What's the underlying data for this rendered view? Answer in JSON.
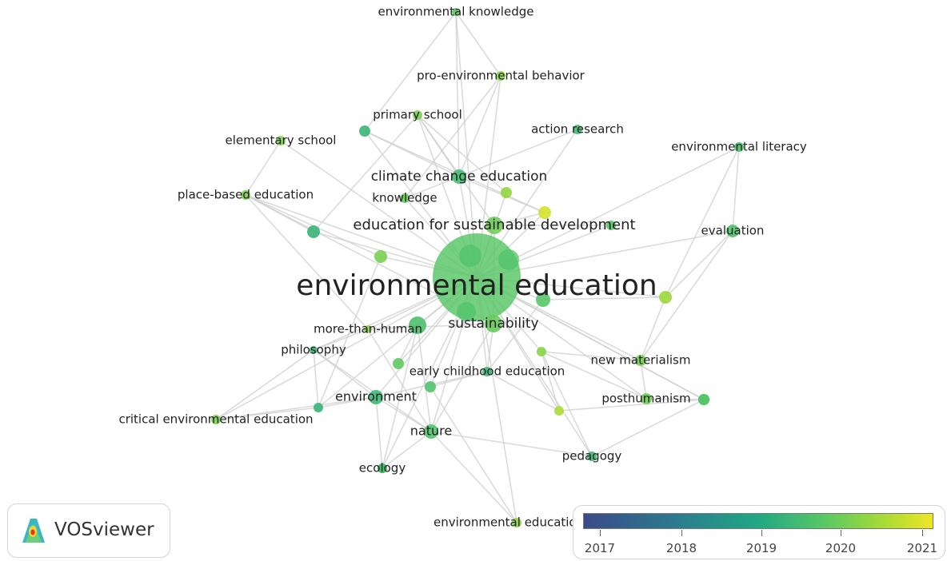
{
  "network": {
    "colors": {
      "edge": "#cfcfcf",
      "label": "#222222"
    },
    "nodes": [
      {
        "id": "environmental-education",
        "label": "environmental education",
        "year": 2019.6
      },
      {
        "id": "sustainability",
        "label": "sustainability",
        "year": 2019.8
      },
      {
        "id": "education-for-sustainable-development",
        "label": "education for sustainable development",
        "year": 2019.9
      },
      {
        "id": "climate-change-education",
        "label": "climate change education",
        "year": 2019.3
      },
      {
        "id": "environmental-knowledge",
        "label": "environmental knowledge",
        "year": 2019.7
      },
      {
        "id": "pro-environmental-behavior",
        "label": "pro-environmental behavior",
        "year": 2020.2
      },
      {
        "id": "primary-school",
        "label": "primary school",
        "year": 2020.0
      },
      {
        "id": "action-research",
        "label": "action research",
        "year": 2019.3
      },
      {
        "id": "elementary-school",
        "label": "elementary school",
        "year": 2020.2
      },
      {
        "id": "environmental-literacy",
        "label": "environmental literacy",
        "year": 2019.4
      },
      {
        "id": "place-based-education",
        "label": "place-based education",
        "year": 2020.0
      },
      {
        "id": "knowledge",
        "label": "knowledge",
        "year": 2019.8
      },
      {
        "id": "evaluation",
        "label": "evaluation",
        "year": 2019.5
      },
      {
        "id": "more-than-human",
        "label": "more-than-human",
        "year": 2020.2
      },
      {
        "id": "philosophy",
        "label": "philosophy",
        "year": 2019.2
      },
      {
        "id": "early-childhood-education",
        "label": "early childhood education",
        "year": 2019.2
      },
      {
        "id": "new-materialism",
        "label": "new materialism",
        "year": 2020.0
      },
      {
        "id": "environment",
        "label": "environment",
        "year": 2019.2
      },
      {
        "id": "posthumanism",
        "label": "posthumanism",
        "year": 2019.9
      },
      {
        "id": "critical-environmental-education",
        "label": "critical environmental education",
        "year": 2020.0
      },
      {
        "id": "nature",
        "label": "nature",
        "year": 2019.5
      },
      {
        "id": "pedagogy",
        "label": "pedagogy",
        "year": 2019.2
      },
      {
        "id": "ecology",
        "label": "ecology",
        "year": 2019.2
      },
      {
        "id": "environmental-education-research",
        "label": "environmental education re",
        "year": 2020.2
      },
      {
        "id": "n-a",
        "label": "",
        "year": 2019.1
      },
      {
        "id": "n-b",
        "label": "",
        "year": 2019.1
      },
      {
        "id": "n-c",
        "label": "",
        "year": 2020.0
      },
      {
        "id": "n-d",
        "label": "",
        "year": 2020.3
      },
      {
        "id": "n-e",
        "label": "",
        "year": 2021.0
      },
      {
        "id": "n-f",
        "label": "",
        "year": 2019.6
      },
      {
        "id": "n-g",
        "label": "",
        "year": 2019.4
      },
      {
        "id": "n-h",
        "label": "",
        "year": 2019.1
      },
      {
        "id": "n-i",
        "label": "",
        "year": 2020.6
      },
      {
        "id": "n-j",
        "label": "",
        "year": 2020.4
      },
      {
        "id": "n-k",
        "label": "",
        "year": 2019.5
      },
      {
        "id": "n-l",
        "label": "",
        "year": 2019.7
      },
      {
        "id": "n-m",
        "label": "",
        "year": 2019.3
      },
      {
        "id": "n-n",
        "label": "",
        "year": 2019.1
      },
      {
        "id": "n-o",
        "label": "",
        "year": 2020.2
      },
      {
        "id": "n-p",
        "label": "",
        "year": 2019.6
      },
      {
        "id": "n-q",
        "label": "",
        "year": 2019.6
      }
    ],
    "edges": [
      [
        "environmental-education",
        "sustainability"
      ],
      [
        "environmental-education",
        "education-for-sustainable-development"
      ],
      [
        "environmental-education",
        "climate-change-education"
      ],
      [
        "environmental-education",
        "environmental-knowledge"
      ],
      [
        "environmental-education",
        "pro-environmental-behavior"
      ],
      [
        "environmental-education",
        "primary-school"
      ],
      [
        "environmental-education",
        "action-research"
      ],
      [
        "environmental-education",
        "elementary-school"
      ],
      [
        "environmental-education",
        "environmental-literacy"
      ],
      [
        "environmental-education",
        "place-based-education"
      ],
      [
        "environmental-education",
        "knowledge"
      ],
      [
        "environmental-education",
        "evaluation"
      ],
      [
        "environmental-education",
        "more-than-human"
      ],
      [
        "environmental-education",
        "philosophy"
      ],
      [
        "environmental-education",
        "early-childhood-education"
      ],
      [
        "environmental-education",
        "new-materialism"
      ],
      [
        "environmental-education",
        "environment"
      ],
      [
        "environmental-education",
        "posthumanism"
      ],
      [
        "environmental-education",
        "critical-environmental-education"
      ],
      [
        "environmental-education",
        "nature"
      ],
      [
        "environmental-education",
        "pedagogy"
      ],
      [
        "environmental-education",
        "ecology"
      ],
      [
        "environmental-education",
        "environmental-education-research"
      ],
      [
        "environmental-education",
        "n-a"
      ],
      [
        "environmental-education",
        "n-b"
      ],
      [
        "environmental-education",
        "n-c"
      ],
      [
        "environmental-education",
        "n-d"
      ],
      [
        "environmental-education",
        "n-e"
      ],
      [
        "environmental-education",
        "n-f"
      ],
      [
        "environmental-education",
        "n-g"
      ],
      [
        "environmental-education",
        "n-h"
      ],
      [
        "environmental-education",
        "n-i"
      ],
      [
        "environmental-education",
        "n-j"
      ],
      [
        "environmental-education",
        "n-k"
      ],
      [
        "environmental-education",
        "n-l"
      ],
      [
        "environmental-education",
        "n-n"
      ],
      [
        "environmental-education",
        "n-o"
      ],
      [
        "environmental-education",
        "n-p"
      ],
      [
        "environmental-education",
        "n-q"
      ],
      [
        "environmental-knowledge",
        "pro-environmental-behavior"
      ],
      [
        "environmental-knowledge",
        "n-a"
      ],
      [
        "environmental-knowledge",
        "climate-change-education"
      ],
      [
        "pro-environmental-behavior",
        "climate-change-education"
      ],
      [
        "pro-environmental-behavior",
        "knowledge"
      ],
      [
        "primary-school",
        "climate-change-education"
      ],
      [
        "primary-school",
        "n-d"
      ],
      [
        "primary-school",
        "n-b"
      ],
      [
        "primary-school",
        "education-for-sustainable-development"
      ],
      [
        "elementary-school",
        "place-based-education"
      ],
      [
        "place-based-education",
        "n-b"
      ],
      [
        "place-based-education",
        "n-c"
      ],
      [
        "place-based-education",
        "more-than-human"
      ],
      [
        "place-based-education",
        "sustainability"
      ],
      [
        "n-a",
        "climate-change-education"
      ],
      [
        "n-a",
        "n-e"
      ],
      [
        "action-research",
        "climate-change-education"
      ],
      [
        "climate-change-education",
        "n-e"
      ],
      [
        "climate-change-education",
        "knowledge"
      ],
      [
        "n-e",
        "education-for-sustainable-development"
      ],
      [
        "education-for-sustainable-development",
        "n-f"
      ],
      [
        "education-for-sustainable-development",
        "sustainability"
      ],
      [
        "environmental-literacy",
        "evaluation"
      ],
      [
        "environmental-literacy",
        "n-j"
      ],
      [
        "evaluation",
        "n-j"
      ],
      [
        "evaluation",
        "new-materialism"
      ],
      [
        "n-j",
        "new-materialism"
      ],
      [
        "n-j",
        "n-p"
      ],
      [
        "new-materialism",
        "posthumanism"
      ],
      [
        "new-materialism",
        "n-o"
      ],
      [
        "n-q",
        "posthumanism"
      ],
      [
        "n-q",
        "pedagogy"
      ],
      [
        "n-q",
        "n-i"
      ],
      [
        "posthumanism",
        "n-o"
      ],
      [
        "n-o",
        "n-i"
      ],
      [
        "n-i",
        "early-childhood-education"
      ],
      [
        "early-childhood-education",
        "n-k"
      ],
      [
        "early-childhood-education",
        "environment"
      ],
      [
        "sustainability",
        "nature"
      ],
      [
        "sustainability",
        "early-childhood-education"
      ],
      [
        "sustainability",
        "more-than-human"
      ],
      [
        "more-than-human",
        "philosophy"
      ],
      [
        "more-than-human",
        "nature"
      ],
      [
        "more-than-human",
        "n-g"
      ],
      [
        "philosophy",
        "environment"
      ],
      [
        "philosophy",
        "critical-environmental-education"
      ],
      [
        "philosophy",
        "n-h"
      ],
      [
        "philosophy",
        "nature"
      ],
      [
        "environment",
        "critical-environmental-education"
      ],
      [
        "environment",
        "ecology"
      ],
      [
        "environment",
        "nature"
      ],
      [
        "environment",
        "n-h"
      ],
      [
        "n-h",
        "critical-environmental-education"
      ],
      [
        "n-h",
        "n-c"
      ],
      [
        "nature",
        "pedagogy"
      ],
      [
        "nature",
        "ecology"
      ],
      [
        "nature",
        "n-g"
      ],
      [
        "ecology",
        "n-m"
      ],
      [
        "n-m",
        "n-g"
      ],
      [
        "pedagogy",
        "n-o"
      ],
      [
        "environmental-education-research",
        "n-k"
      ],
      [
        "environmental-education-research",
        "nature"
      ],
      [
        "n-l",
        "n-g"
      ],
      [
        "n-p",
        "early-childhood-education"
      ]
    ]
  },
  "overlay_legend": {
    "ticks": [
      "2017",
      "2018",
      "2019",
      "2020",
      "2021"
    ],
    "colors": [
      "#3b4a8a",
      "#2b7e8e",
      "#22a784",
      "#55c667",
      "#9ed93a",
      "#f0e624"
    ]
  },
  "logo": {
    "text": "VOSviewer"
  }
}
